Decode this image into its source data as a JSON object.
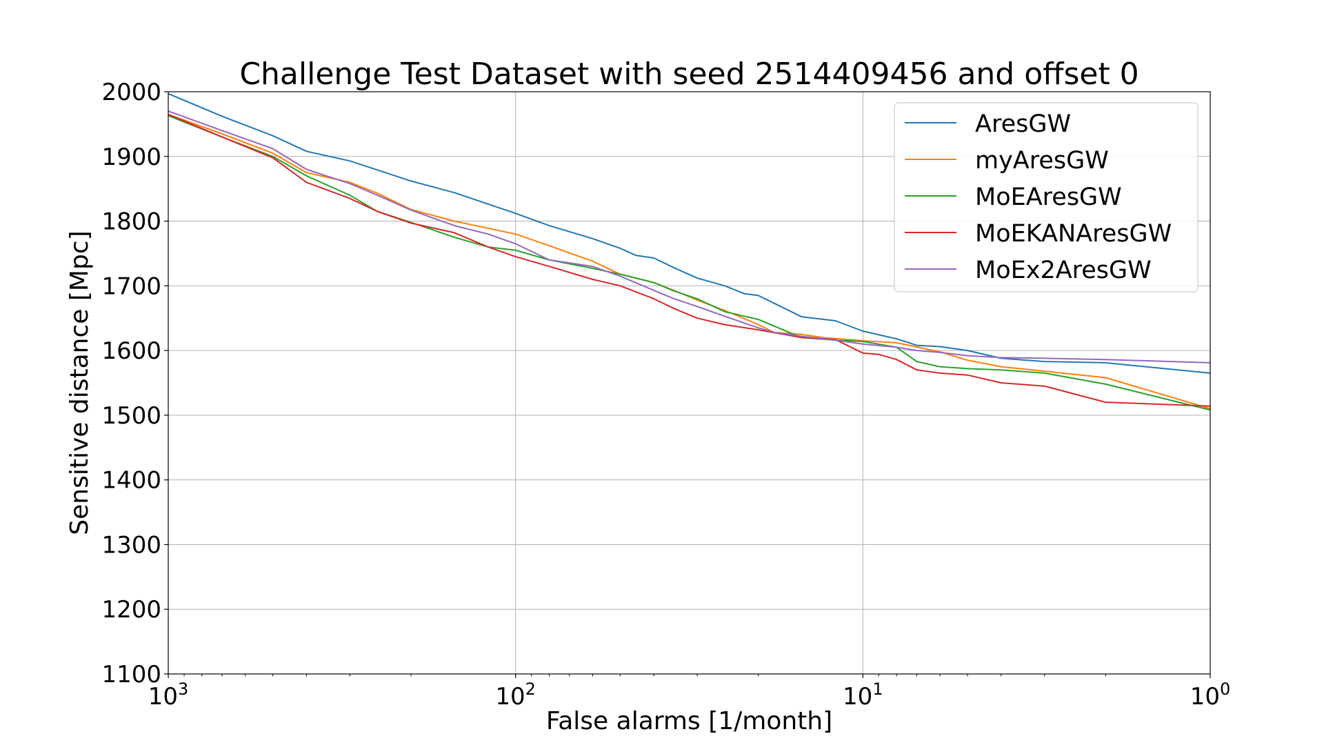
{
  "chart_data": {
    "type": "line",
    "title": "Challenge Test Dataset with seed 2514409456 and offset 0",
    "xlabel": "False alarms [1/month]",
    "ylabel": "Sensitive distance [Mpc]",
    "x_scale": "log",
    "x_reversed": true,
    "xlim": [
      1000,
      1
    ],
    "ylim": [
      1100,
      2000
    ],
    "grid": true,
    "legend_position": "top-right",
    "x_ticks": [
      {
        "value": 1000,
        "base": "10",
        "exp": "3"
      },
      {
        "value": 100,
        "base": "10",
        "exp": "2"
      },
      {
        "value": 10,
        "base": "10",
        "exp": "1"
      },
      {
        "value": 1,
        "base": "10",
        "exp": "0"
      }
    ],
    "y_ticks": [
      "1100",
      "1200",
      "1300",
      "1400",
      "1500",
      "1600",
      "1700",
      "1800",
      "1900",
      "2000"
    ],
    "series": [
      {
        "name": "AresGW",
        "color": "#1f77b4",
        "x": [
          1000,
          700,
          500,
          400,
          300,
          200,
          150,
          100,
          80,
          60,
          50,
          45,
          40,
          35,
          30,
          25,
          22,
          20,
          18,
          15,
          12,
          10,
          8,
          7,
          6,
          5,
          4,
          3,
          2,
          1
        ],
        "y": [
          1997,
          1962,
          1932,
          1908,
          1893,
          1862,
          1844,
          1812,
          1793,
          1773,
          1758,
          1747,
          1743,
          1728,
          1712,
          1700,
          1688,
          1685,
          1673,
          1652,
          1646,
          1630,
          1618,
          1608,
          1606,
          1600,
          1588,
          1583,
          1581,
          1565
        ]
      },
      {
        "name": "myAresGW",
        "color": "#ff7f0e",
        "x": [
          1000,
          700,
          500,
          400,
          300,
          250,
          200,
          150,
          100,
          80,
          60,
          50,
          40,
          35,
          30,
          25,
          20,
          18,
          15,
          13,
          10,
          8,
          6,
          5,
          4,
          3,
          2,
          1
        ],
        "y": [
          1965,
          1935,
          1905,
          1875,
          1860,
          1843,
          1818,
          1800,
          1780,
          1762,
          1738,
          1718,
          1705,
          1693,
          1678,
          1662,
          1640,
          1628,
          1625,
          1620,
          1615,
          1612,
          1598,
          1585,
          1575,
          1568,
          1558,
          1510
        ]
      },
      {
        "name": "MoEAresGW",
        "color": "#2ca02c",
        "x": [
          1000,
          700,
          500,
          400,
          300,
          250,
          200,
          150,
          120,
          100,
          80,
          60,
          50,
          40,
          35,
          30,
          25,
          20,
          15,
          12,
          10,
          8,
          7,
          6,
          5,
          4,
          3,
          2,
          1
        ],
        "y": [
          1963,
          1930,
          1900,
          1870,
          1840,
          1815,
          1798,
          1775,
          1760,
          1755,
          1740,
          1727,
          1718,
          1705,
          1692,
          1680,
          1660,
          1648,
          1620,
          1616,
          1614,
          1605,
          1583,
          1575,
          1572,
          1570,
          1565,
          1548,
          1508
        ]
      },
      {
        "name": "MoEKANAresGW",
        "color": "#d62728",
        "x": [
          1000,
          700,
          500,
          400,
          300,
          250,
          200,
          150,
          120,
          100,
          80,
          60,
          50,
          40,
          35,
          30,
          25,
          20,
          15,
          12,
          10,
          9,
          8,
          7,
          6,
          5,
          4,
          3,
          2,
          1
        ],
        "y": [
          1965,
          1930,
          1898,
          1860,
          1835,
          1815,
          1797,
          1782,
          1760,
          1745,
          1730,
          1710,
          1700,
          1680,
          1665,
          1650,
          1640,
          1632,
          1620,
          1617,
          1596,
          1594,
          1586,
          1570,
          1565,
          1562,
          1550,
          1545,
          1520,
          1514
        ]
      },
      {
        "name": "MoEx2AresGW",
        "color": "#9467bd",
        "x": [
          1000,
          700,
          500,
          400,
          300,
          250,
          200,
          150,
          120,
          100,
          80,
          60,
          50,
          40,
          35,
          30,
          25,
          20,
          18,
          15,
          12,
          10,
          8,
          7,
          6,
          5,
          4,
          3,
          2,
          1
        ],
        "y": [
          1970,
          1940,
          1912,
          1880,
          1858,
          1840,
          1817,
          1793,
          1780,
          1765,
          1740,
          1730,
          1715,
          1693,
          1680,
          1668,
          1653,
          1635,
          1628,
          1622,
          1616,
          1610,
          1605,
          1600,
          1597,
          1592,
          1589,
          1588,
          1586,
          1581
        ]
      }
    ]
  }
}
